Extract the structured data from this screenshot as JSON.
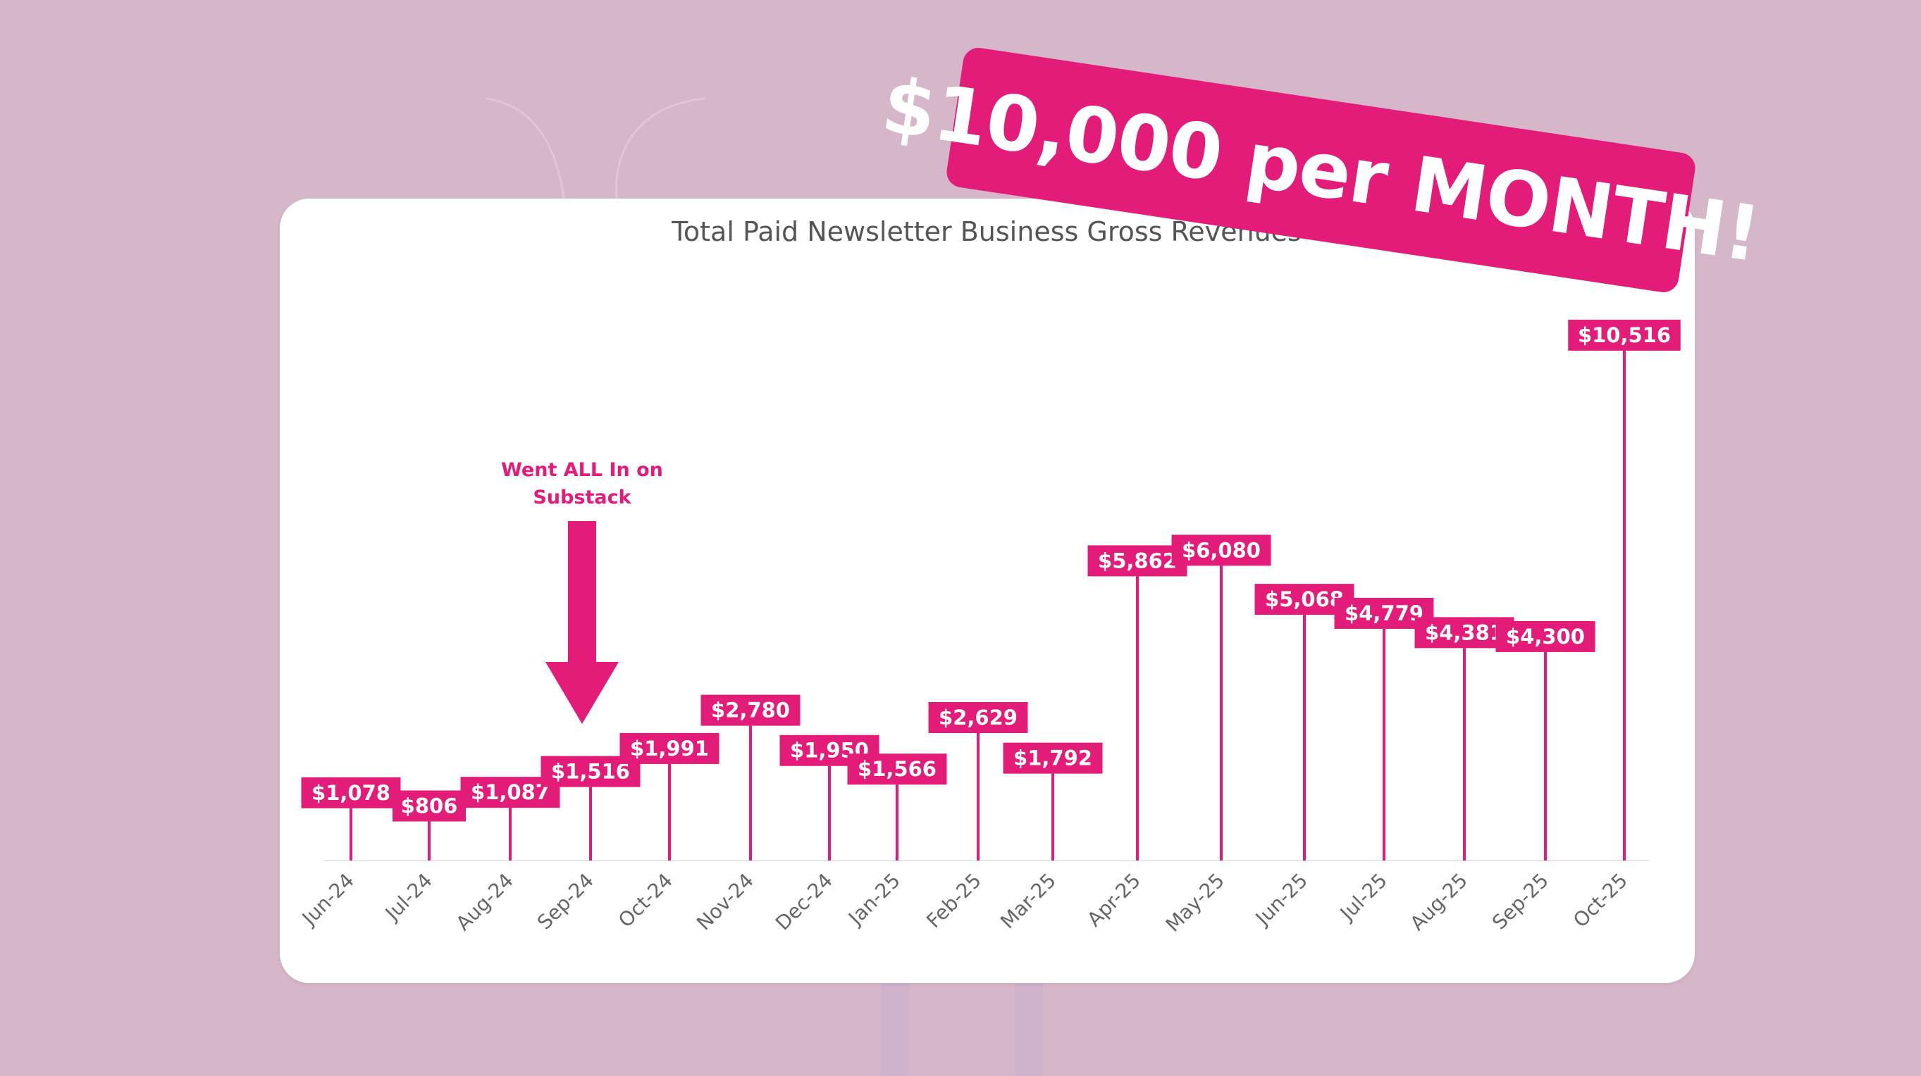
{
  "banner": {
    "text": "$10,000 per MONTH!"
  },
  "colors": {
    "background": "#d6b6c9",
    "accent": "#e31c79",
    "card": "#ffffff"
  },
  "chart_data": {
    "type": "bar",
    "style": "lollipop-with-label-boxes",
    "title": "Total Paid Newsletter Business Gross Revenues",
    "xlabel": "",
    "ylabel": "",
    "ylim": [
      0,
      10516
    ],
    "grid": false,
    "legend": "none",
    "categories": [
      "Jun-24",
      "Jul-24",
      "Aug-24",
      "Sep-24",
      "Oct-24",
      "Nov-24",
      "Dec-24",
      "Jan-25",
      "Feb-25",
      "Mar-25",
      "Apr-25",
      "May-25",
      "Jun-25",
      "Jul-25",
      "Aug-25",
      "Sep-25",
      "Oct-25"
    ],
    "values": [
      1078,
      806,
      1087,
      1516,
      1991,
      2780,
      1950,
      1566,
      2629,
      1792,
      5862,
      6080,
      5068,
      4779,
      4381,
      4300,
      10516
    ],
    "value_labels": [
      "$1,078",
      "$806",
      "$1,087",
      "$1,516",
      "$1,991",
      "$2,780",
      "$1,950",
      "$1,566",
      "$2,629",
      "$1,792",
      "$5,862",
      "$6,080",
      "$5,068",
      "$4,779",
      "$4,381",
      "$4,300",
      "$10,516"
    ],
    "annotations": [
      {
        "lines": [
          "Went ALL In on",
          "Substack"
        ],
        "points_to": "Sep-24"
      }
    ]
  }
}
